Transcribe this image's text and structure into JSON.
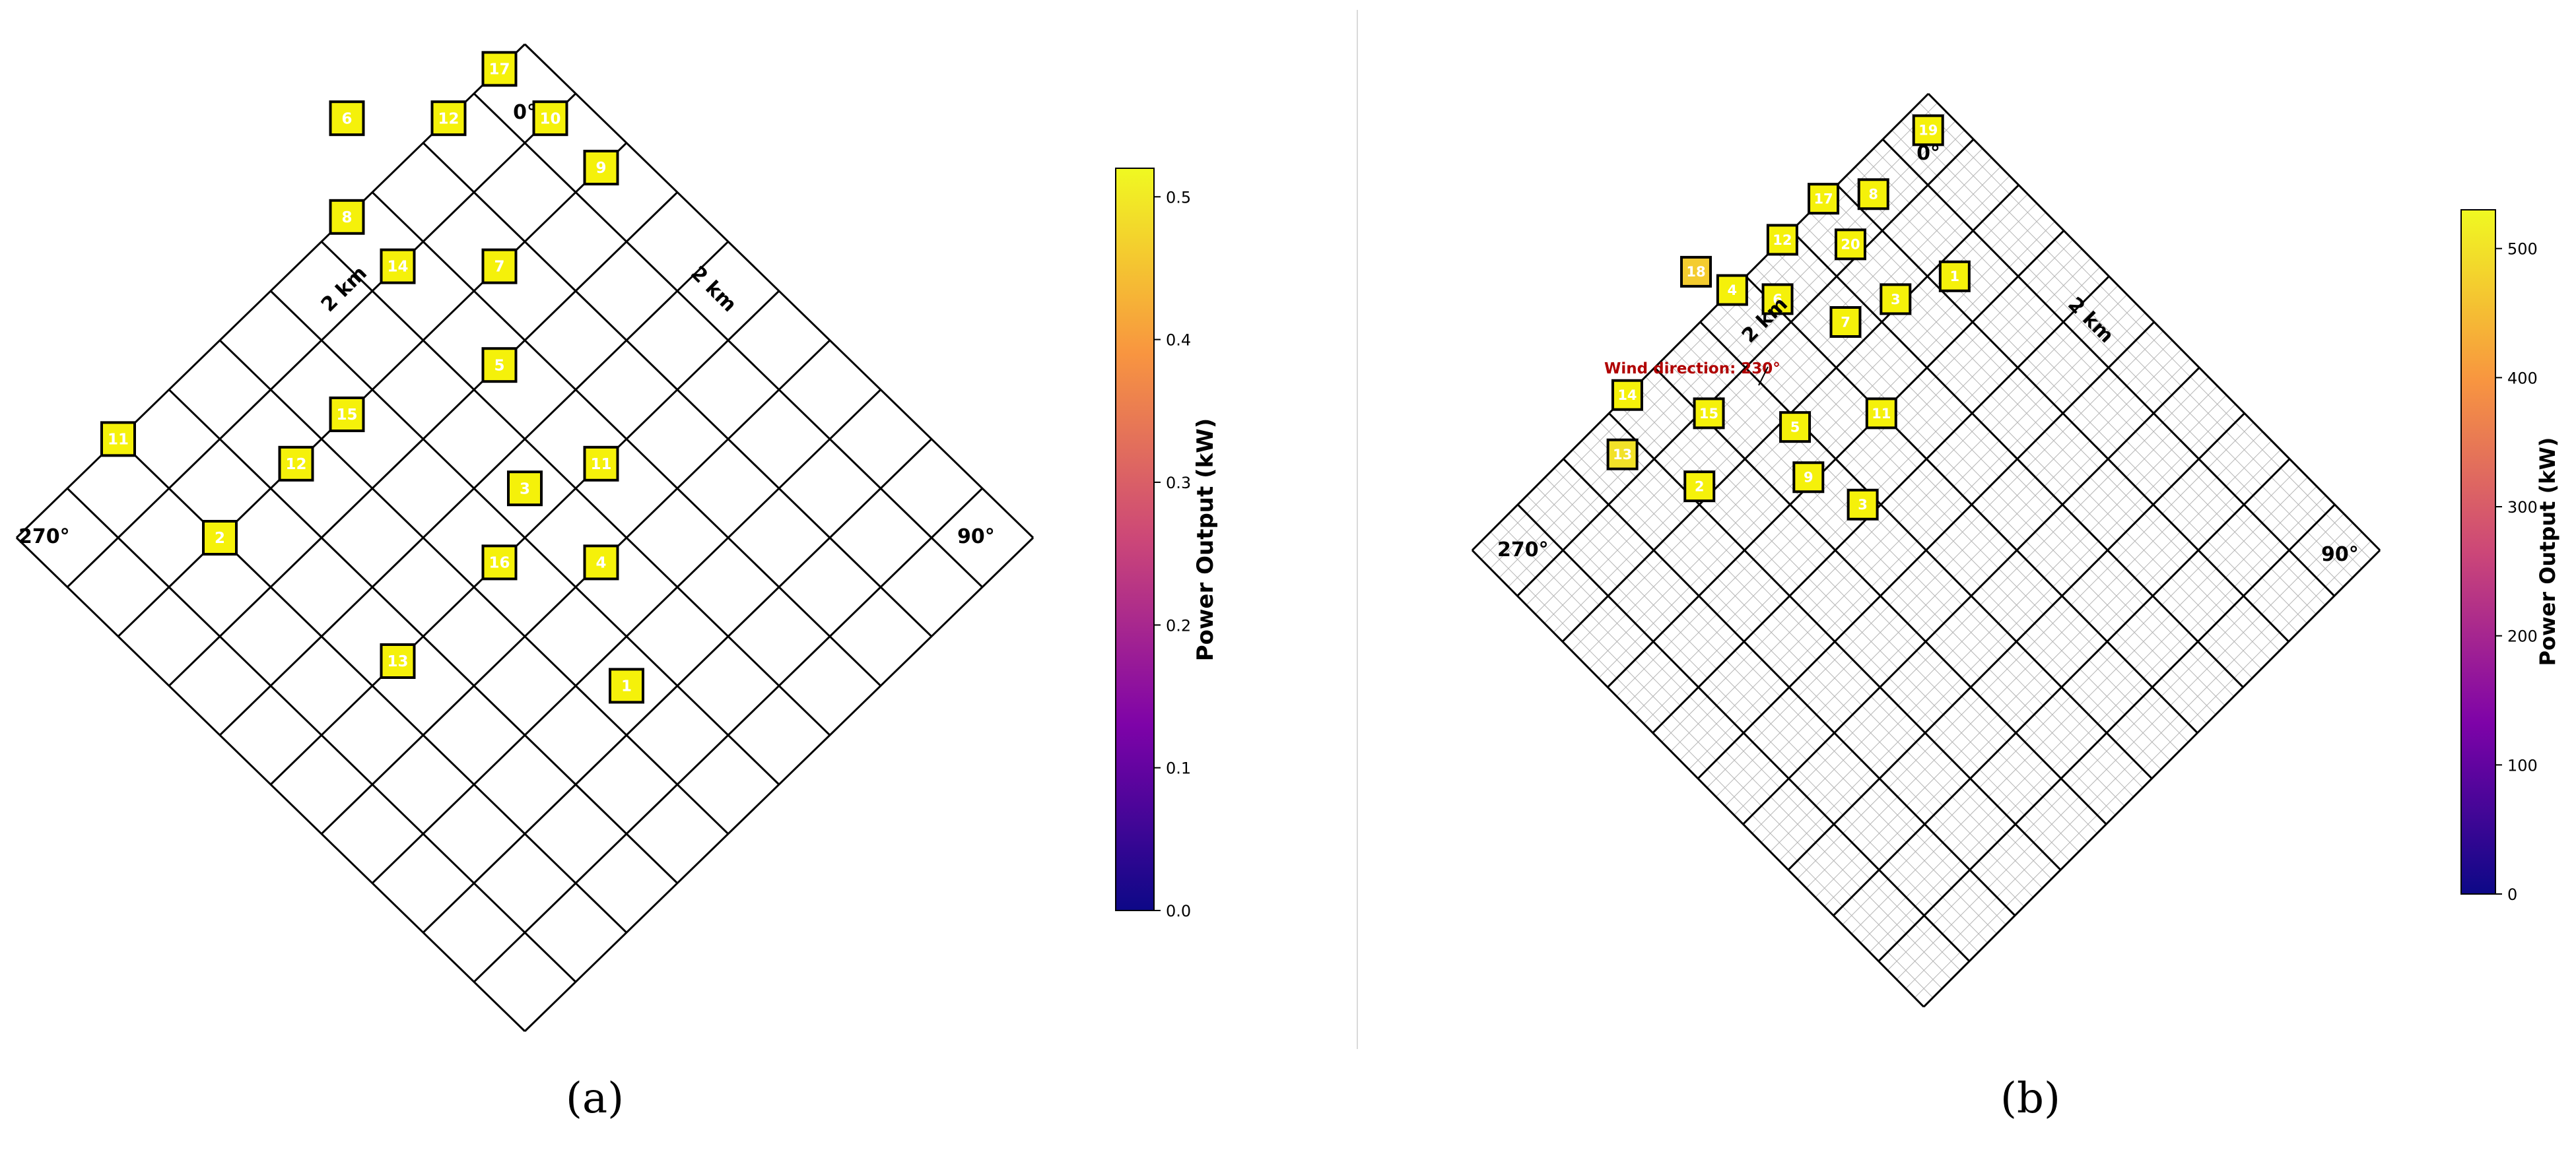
{
  "panels": [
    {
      "label": "(a)",
      "direction_labels": {
        "north": "0°",
        "west": "270°",
        "east": "90°"
      },
      "scale_labels": [
        "2 km",
        "2 km"
      ],
      "wind_label": "",
      "colorbar": {
        "label": "Power Output (kW)",
        "min": 0.0,
        "max": 0.52,
        "ticks": [
          "0.0",
          "0.1",
          "0.2",
          "0.3",
          "0.4",
          "0.5"
        ],
        "tick_values": [
          0.0,
          0.1,
          0.2,
          0.3,
          0.4,
          0.5
        ]
      }
    },
    {
      "label": "(b)",
      "direction_labels": {
        "north": "0°",
        "west": "270°",
        "east": "90°"
      },
      "scale_labels": [
        "2 km",
        "2 km"
      ],
      "wind_label": "Wind direction: 230°",
      "colorbar": {
        "label": "Power Output (kW)",
        "min": 0,
        "max": 530,
        "ticks": [
          "0",
          "100",
          "200",
          "300",
          "400",
          "500"
        ],
        "tick_values": [
          0,
          100,
          200,
          300,
          400,
          500
        ]
      }
    }
  ],
  "colors": {
    "grid_line": "#000000",
    "fine_grid": "#b5b5b5",
    "marker_fill": "#f5f10a",
    "marker_edge": "#000000",
    "wind_label": "#b00000",
    "colormap": "plasma"
  },
  "chart_data": [
    {
      "type": "scatter",
      "title": "(a)",
      "colorbar_label": "Power Output (kW)",
      "grid_cells": [
        10,
        10
      ],
      "axes": "grid cell (u, v) along diamond edges",
      "turbines": [
        {
          "id": "9",
          "u": 0.5,
          "v": 2.0,
          "power": 0.52
        },
        {
          "id": "17",
          "u": 0.5,
          "v": 0.0,
          "power": 0.52
        },
        {
          "id": "11",
          "u": 3.5,
          "v": 5.0,
          "power": 0.52
        },
        {
          "id": "7",
          "u": 2.5,
          "v": 2.0,
          "power": 0.52
        },
        {
          "id": "12",
          "u": 1.5,
          "v": 0.0,
          "power": 0.52
        },
        {
          "id": "5",
          "u": 3.5,
          "v": 3.0,
          "power": 0.52
        },
        {
          "id": "4",
          "u": 4.5,
          "v": 6.0,
          "power": 0.52
        },
        {
          "id": "14",
          "u": 3.5,
          "v": 1.0,
          "power": 0.52
        },
        {
          "id": "6",
          "u": 2.5,
          "v": -1.0,
          "power": 0.52
        },
        {
          "id": "1",
          "u": 5.5,
          "v": 7.5,
          "power": 0.52
        },
        {
          "id": "16",
          "u": 5.5,
          "v": 5.0,
          "power": 0.52
        },
        {
          "id": "3",
          "u": 4.5,
          "v": 4.5,
          "power": 0.52
        },
        {
          "id": "10",
          "u": 0.5,
          "v": 1.0,
          "power": 0.52
        },
        {
          "id": "8",
          "u": 3.5,
          "v": 0.0,
          "power": 0.52
        },
        {
          "id": "12",
          "u": 6.5,
          "v": 2.0,
          "power": 0.52
        },
        {
          "id": "13",
          "u": 7.5,
          "v": 5.0,
          "power": 0.52
        },
        {
          "id": "15",
          "u": 5.5,
          "v": 2.0,
          "power": 0.52
        },
        {
          "id": "2",
          "u": 8.0,
          "v": 2.0,
          "power": 0.52
        },
        {
          "id": "11",
          "u": 8.0,
          "v": 0.0,
          "power": 0.52
        }
      ]
    },
    {
      "type": "scatter",
      "title": "(b)",
      "colorbar_label": "Power Output (kW)",
      "grid_cells": [
        10,
        10
      ],
      "axes": "grid cell (u, v) along diamond edges",
      "turbines": [
        {
          "id": "19",
          "u": 0.4,
          "v": 0.4,
          "power": 530
        },
        {
          "id": "1",
          "u": 1.7,
          "v": 2.3,
          "power": 530
        },
        {
          "id": "8",
          "u": 1.7,
          "v": 0.5,
          "power": 530
        },
        {
          "id": "3",
          "u": 2.6,
          "v": 1.9,
          "power": 530
        },
        {
          "id": "17",
          "u": 2.3,
          "v": 0.0,
          "power": 530
        },
        {
          "id": "20",
          "u": 2.5,
          "v": 0.8,
          "power": 530
        },
        {
          "id": "11",
          "u": 4.0,
          "v": 3.0,
          "power": 530
        },
        {
          "id": "7",
          "u": 3.4,
          "v": 1.6,
          "power": 530
        },
        {
          "id": "12",
          "u": 3.2,
          "v": 0.0,
          "power": 530
        },
        {
          "id": "6",
          "u": 3.9,
          "v": 0.6,
          "power": 530
        },
        {
          "id": "3",
          "u": 5.2,
          "v": 3.8,
          "power": 530
        },
        {
          "id": "5",
          "u": 5.1,
          "v": 2.2,
          "power": 530
        },
        {
          "id": "4",
          "u": 4.3,
          "v": 0.0,
          "power": 530
        },
        {
          "id": "18",
          "u": 4.5,
          "v": -0.6,
          "power": 470
        },
        {
          "id": "9",
          "u": 5.5,
          "v": 2.9,
          "power": 530
        },
        {
          "id": "15",
          "u": 5.9,
          "v": 1.1,
          "power": 530
        },
        {
          "id": "2",
          "u": 6.8,
          "v": 1.8,
          "power": 530
        },
        {
          "id": "14",
          "u": 6.6,
          "v": 0.0,
          "power": 530
        },
        {
          "id": "13",
          "u": 7.3,
          "v": 0.6,
          "power": 500
        }
      ]
    }
  ]
}
